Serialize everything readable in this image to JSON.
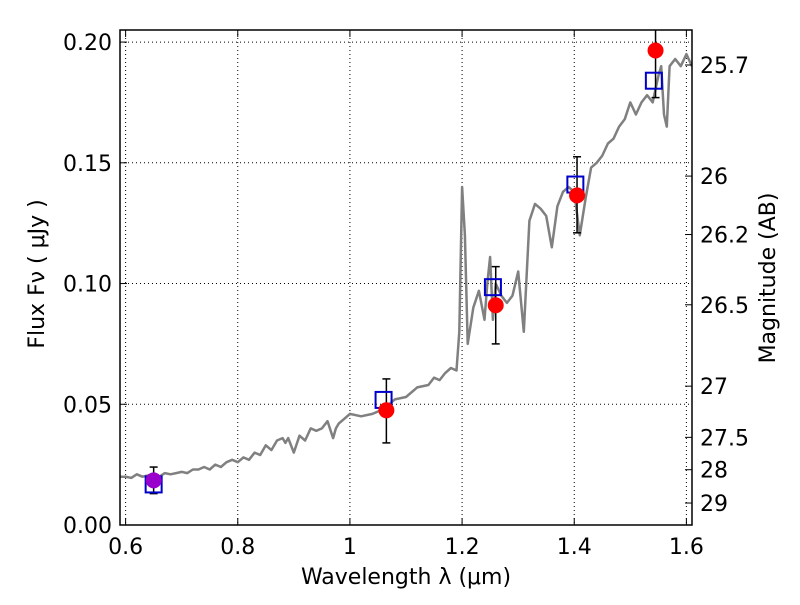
{
  "chart_data": {
    "type": "scatter",
    "title": "",
    "xlabel": "Wavelength  λ (μm)",
    "ylabel_left": "Flux  Fν  ( μJy )",
    "ylabel_right": "Magnitude (AB)",
    "xlim": [
      0.59,
      1.61
    ],
    "ylim": [
      0.0,
      0.205
    ],
    "grid": true,
    "x_ticks": [
      0.6,
      0.8,
      1.0,
      1.2,
      1.4,
      1.6
    ],
    "x_tick_labels": [
      "0.6",
      "0.8",
      "1",
      "1.2",
      "1.4",
      "1.6"
    ],
    "y_ticks": [
      0.0,
      0.05,
      0.1,
      0.15,
      0.2
    ],
    "y_tick_labels": [
      "0.00",
      "0.05",
      "0.10",
      "0.15",
      "0.20"
    ],
    "right_axis_labels": [
      {
        "label": "25.7",
        "flux": 0.1905
      },
      {
        "label": "26",
        "flux": 0.1445
      },
      {
        "label": "26.2",
        "flux": 0.1203
      },
      {
        "label": "26.5",
        "flux": 0.0912
      },
      {
        "label": "27",
        "flux": 0.0575
      },
      {
        "label": "27.5",
        "flux": 0.0363
      },
      {
        "label": "28",
        "flux": 0.0229
      },
      {
        "label": "29",
        "flux": 0.0091
      }
    ],
    "colors": {
      "model": "#808080",
      "observed": "#ff0000",
      "synthetic": "#0000cc",
      "errorbar": "#000000",
      "first_point": "#9900cc"
    },
    "series": [
      {
        "kind": "line",
        "x": [
          0.59,
          0.6,
          0.61,
          0.62,
          0.63,
          0.64,
          0.65,
          0.66,
          0.67,
          0.68,
          0.69,
          0.7,
          0.71,
          0.72,
          0.73,
          0.74,
          0.75,
          0.76,
          0.77,
          0.78,
          0.79,
          0.8,
          0.81,
          0.82,
          0.83,
          0.84,
          0.85,
          0.86,
          0.87,
          0.88,
          0.885,
          0.89,
          0.9,
          0.91,
          0.92,
          0.93,
          0.94,
          0.95,
          0.96,
          0.97,
          0.975,
          0.98,
          0.99,
          1.0,
          1.02,
          1.04,
          1.06,
          1.08,
          1.1,
          1.12,
          1.14,
          1.15,
          1.16,
          1.17,
          1.18,
          1.19,
          1.195,
          1.2,
          1.205,
          1.21,
          1.22,
          1.23,
          1.24,
          1.245,
          1.25,
          1.255,
          1.26,
          1.27,
          1.28,
          1.29,
          1.3,
          1.31,
          1.32,
          1.33,
          1.34,
          1.35,
          1.36,
          1.37,
          1.38,
          1.39,
          1.4,
          1.41,
          1.42,
          1.43,
          1.44,
          1.45,
          1.46,
          1.47,
          1.48,
          1.49,
          1.5,
          1.51,
          1.52,
          1.53,
          1.54,
          1.55,
          1.555,
          1.56,
          1.565,
          1.57,
          1.58,
          1.59,
          1.6,
          1.61
        ],
        "y": [
          0.02,
          0.02,
          0.0195,
          0.021,
          0.02,
          0.0205,
          0.021,
          0.02,
          0.0215,
          0.021,
          0.0215,
          0.022,
          0.0215,
          0.023,
          0.023,
          0.024,
          0.023,
          0.025,
          0.024,
          0.026,
          0.027,
          0.026,
          0.028,
          0.027,
          0.03,
          0.029,
          0.033,
          0.031,
          0.035,
          0.036,
          0.034,
          0.036,
          0.03,
          0.037,
          0.035,
          0.04,
          0.039,
          0.04,
          0.043,
          0.036,
          0.04,
          0.042,
          0.044,
          0.046,
          0.045,
          0.046,
          0.048,
          0.052,
          0.053,
          0.057,
          0.058,
          0.061,
          0.06,
          0.063,
          0.065,
          0.064,
          0.08,
          0.14,
          0.12,
          0.075,
          0.09,
          0.097,
          0.085,
          0.1,
          0.111,
          0.085,
          0.1,
          0.095,
          0.092,
          0.095,
          0.105,
          0.08,
          0.126,
          0.133,
          0.131,
          0.128,
          0.115,
          0.132,
          0.138,
          0.14,
          0.138,
          0.12,
          0.135,
          0.148,
          0.15,
          0.153,
          0.158,
          0.16,
          0.165,
          0.168,
          0.175,
          0.17,
          0.175,
          0.178,
          0.175,
          0.186,
          0.19,
          0.17,
          0.165,
          0.19,
          0.193,
          0.19,
          0.195,
          0.19
        ]
      },
      {
        "kind": "points",
        "name": "",
        "x": [
          0.65,
          1.065,
          1.26,
          1.405,
          1.545
        ],
        "y": [
          0.0185,
          0.0475,
          0.091,
          0.1365,
          0.1965
        ],
        "yerr_low": [
          0.013,
          0.034,
          0.075,
          0.121,
          0.177
        ],
        "yerr_high": [
          0.024,
          0.0605,
          0.107,
          0.1525,
          0.21
        ]
      },
      {
        "kind": "squares",
        "name": "",
        "x": [
          0.65,
          1.06,
          1.255,
          1.402,
          1.542
        ],
        "y": [
          0.0168,
          0.0518,
          0.0985,
          0.141,
          0.184
        ]
      }
    ]
  }
}
